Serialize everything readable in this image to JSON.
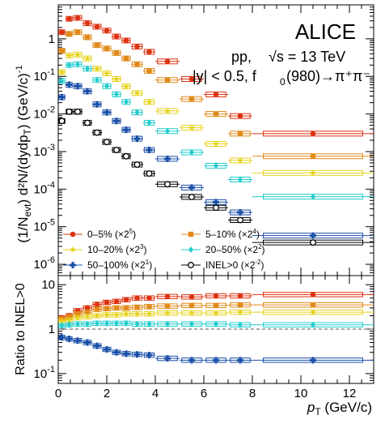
{
  "chart_data": [
    {
      "type": "scatter",
      "panel": "top",
      "ylabel": "(1/N_evt) d²N/(dydp_T) (GeV/c)^-1",
      "yscale": "log",
      "ylim": [
        5e-07,
        8
      ],
      "xlim": [
        0,
        13
      ],
      "yticks": [
        "10^-6",
        "10^-5",
        "10^-4",
        "10^-3",
        "10^-2",
        "10^-1",
        "1"
      ],
      "annotations": [
        "ALICE",
        "pp, √s = 13 TeV",
        "|y| < 0.5, f0(980)→π⁺π⁻"
      ],
      "legend_placement": "bottom-left",
      "x_bins": [
        [
          0,
          0.3
        ],
        [
          0.3,
          0.6
        ],
        [
          0.6,
          1.0
        ],
        [
          1.0,
          1.4
        ],
        [
          1.4,
          1.8
        ],
        [
          1.8,
          2.2
        ],
        [
          2.2,
          2.6
        ],
        [
          2.6,
          3.0
        ],
        [
          3.0,
          3.5
        ],
        [
          3.5,
          4.0
        ],
        [
          4.0,
          5.0
        ],
        [
          5.0,
          6.0
        ],
        [
          6.0,
          7.0
        ],
        [
          7.0,
          8.0
        ],
        [
          8.0,
          13.0
        ]
      ],
      "series": [
        {
          "name": "0–5% (×2^5)",
          "color": "#dd3311",
          "marker": "circle",
          "values": [
            1.5,
            3.4,
            3.6,
            2.6,
            2.1,
            1.65,
            1.15,
            0.9,
            0.62,
            0.45,
            0.25,
            0.085,
            0.033,
            0.0088,
            0.003
          ]
        },
        {
          "name": "5–10% (×2^4)",
          "color": "#e08a1a",
          "marker": "square",
          "values": [
            0.48,
            1.35,
            1.5,
            1.1,
            0.68,
            0.55,
            0.42,
            0.3,
            0.21,
            0.14,
            0.08,
            0.025,
            0.01,
            0.003,
            0.00075
          ]
        },
        {
          "name": "10–20% (×2^3)",
          "color": "#e6d21a",
          "marker": "star",
          "values": [
            0.13,
            0.36,
            0.38,
            0.3,
            0.16,
            0.12,
            0.085,
            0.054,
            0.036,
            0.021,
            0.012,
            0.0043,
            0.0016,
            0.00058,
            0.00027
          ]
        },
        {
          "name": "20–50% (×2^2)",
          "color": "#22cccc",
          "marker": "diamond",
          "values": [
            0.075,
            0.2,
            0.21,
            0.16,
            0.08,
            0.055,
            0.033,
            0.021,
            0.011,
            0.0058,
            0.0035,
            0.00095,
            0.00042,
            0.00018,
            6.3e-05
          ]
        },
        {
          "name": "50–100% (×2^1)",
          "color": "#1a4fa8",
          "marker": "cross",
          "values": [
            0.028,
            0.06,
            0.055,
            0.04,
            0.018,
            0.011,
            0.0065,
            0.0038,
            0.0022,
            0.0011,
            0.00064,
            0.00011,
            4.5e-05,
            2.4e-05,
            5.8e-06
          ]
        },
        {
          "name": "INEL>0 (×2^-2)",
          "color": "#000000",
          "marker": "open-circle",
          "values": [
            0.0065,
            0.0115,
            0.0115,
            0.0058,
            0.0032,
            0.0018,
            0.0011,
            0.00075,
            0.00045,
            0.00026,
            0.000135,
            6.2e-05,
            3.2e-05,
            1.5e-05,
            3.8e-06
          ]
        }
      ]
    },
    {
      "type": "scatter",
      "panel": "bottom",
      "xlabel": "p_T (GeV/c)",
      "ylabel": "Ratio to INEL>0",
      "yscale": "log",
      "ylim": [
        0.06,
        16
      ],
      "xlim": [
        0,
        13
      ],
      "xticks": [
        "0",
        "2",
        "4",
        "6",
        "8",
        "10",
        "12"
      ],
      "yticks": [
        "10^-1",
        "1",
        "10"
      ],
      "reference_line": 1,
      "x_bins": [
        [
          0,
          0.3
        ],
        [
          0.3,
          0.6
        ],
        [
          0.6,
          1.0
        ],
        [
          1.0,
          1.4
        ],
        [
          1.4,
          1.8
        ],
        [
          1.8,
          2.2
        ],
        [
          2.2,
          2.6
        ],
        [
          2.6,
          3.0
        ],
        [
          3.0,
          3.5
        ],
        [
          3.5,
          4.0
        ],
        [
          4.0,
          5.0
        ],
        [
          5.0,
          6.0
        ],
        [
          6.0,
          7.0
        ],
        [
          7.0,
          8.0
        ],
        [
          8.0,
          13.0
        ]
      ],
      "series": [
        {
          "name": "0–5%",
          "color": "#dd3311",
          "marker": "circle",
          "values": [
            1.8,
            2.0,
            2.6,
            3.0,
            3.6,
            4.0,
            4.2,
            4.6,
            5.0,
            5.0,
            5.4,
            5.3,
            5.6,
            5.6,
            6.0
          ]
        },
        {
          "name": "5–10%",
          "color": "#e08a1a",
          "marker": "square",
          "values": [
            1.7,
            1.9,
            2.2,
            2.4,
            2.8,
            2.9,
            3.0,
            3.0,
            3.1,
            3.2,
            3.3,
            3.4,
            3.4,
            3.5,
            3.5
          ]
        },
        {
          "name": "10–20%",
          "color": "#e6d21a",
          "marker": "star",
          "values": [
            1.5,
            1.6,
            1.8,
            1.9,
            2.0,
            2.1,
            2.1,
            2.2,
            2.2,
            2.2,
            2.3,
            2.3,
            2.3,
            2.4,
            2.4
          ]
        },
        {
          "name": "20–50%",
          "color": "#22cccc",
          "marker": "diamond",
          "values": [
            1.2,
            1.25,
            1.3,
            1.3,
            1.35,
            1.35,
            1.35,
            1.35,
            1.3,
            1.3,
            1.3,
            1.3,
            1.3,
            1.25,
            1.25
          ]
        },
        {
          "name": "50–100%",
          "color": "#1a4fa8",
          "marker": "cross",
          "values": [
            0.65,
            0.6,
            0.55,
            0.5,
            0.42,
            0.35,
            0.3,
            0.28,
            0.27,
            0.26,
            0.22,
            0.2,
            0.2,
            0.2,
            0.2
          ]
        }
      ]
    }
  ],
  "text": {
    "alice": "ALICE",
    "system": "pp,",
    "sqrt_s": "√s = 13 TeV",
    "rapidity": "|y| < 0.5, f",
    "rapidity_sub": "0",
    "rapidity_tail": "(980)→π⁺π⁻",
    "top_ylabel_a": "(1/N",
    "top_ylabel_sub": "evt",
    "top_ylabel_b": ") d²N/(dydp",
    "top_ylabel_sub2": "T",
    "top_ylabel_c": ") (GeV/c)",
    "top_ylabel_sup": "-1",
    "bottom_ylabel": "Ratio to INEL>0",
    "xlabel_a": "p",
    "xlabel_sub": "T",
    "xlabel_b": " (GeV/c)"
  },
  "legend": [
    {
      "label": "0–5% (×2",
      "sup": "5",
      "close": ")"
    },
    {
      "label": "5–10% (×2",
      "sup": "4",
      "close": ")"
    },
    {
      "label": "10–20% (×2",
      "sup": "3",
      "close": ")"
    },
    {
      "label": "20–50% (×2",
      "sup": "2",
      "close": ")"
    },
    {
      "label": "50–100% (×2",
      "sup": "1",
      "close": ")"
    },
    {
      "label": "INEL>0 (×2",
      "sup": "-2",
      "close": ")"
    }
  ]
}
